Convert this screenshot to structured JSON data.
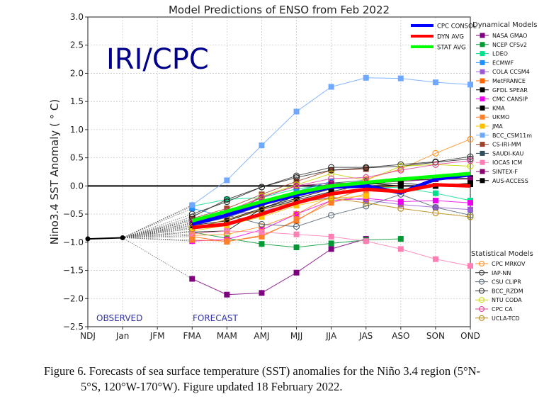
{
  "chart_data": {
    "type": "line",
    "title": "Model Predictions of ENSO from Feb 2022",
    "watermark": "IRI/CPC",
    "xlabel": "",
    "ylabel": "Nino3.4 SST Anomaly ( ° C)",
    "ylim": [
      -2.5,
      3.0
    ],
    "yticks": [
      "3.0",
      "2.5",
      "2.0",
      "1.5",
      "1.0",
      "0.5",
      "0.0",
      "−0.5",
      "−1.0",
      "−1.5",
      "−2.0",
      "−2.5"
    ],
    "ytick_values": [
      3.0,
      2.5,
      2.0,
      1.5,
      1.0,
      0.5,
      0.0,
      -0.5,
      -1.0,
      -1.5,
      -2.0,
      -2.5
    ],
    "categories": [
      "NDJ",
      "Jan",
      "JFM",
      "FMA",
      "MAM",
      "AMJ",
      "MJJ",
      "JJA",
      "JAS",
      "ASO",
      "SON",
      "OND"
    ],
    "grid": true,
    "annotations": {
      "observed": "OBSERVED",
      "forecast": "FORECAST"
    },
    "observed": {
      "x": [
        0,
        1
      ],
      "values": [
        -0.94,
        -0.92
      ]
    },
    "summary_series": [
      {
        "name": "CPC CONSOL",
        "color": "#0000ff",
        "values": [
          -0.68,
          -0.52,
          -0.32,
          -0.16,
          -0.02,
          0.0,
          -0.12,
          0.12,
          0.2
        ]
      },
      {
        "name": "DYN AVG",
        "color": "#ff0000",
        "values": [
          -0.74,
          -0.68,
          -0.5,
          -0.3,
          -0.14,
          -0.06,
          -0.1,
          0.02,
          0.0
        ]
      },
      {
        "name": "STAT AVG",
        "color": "#00ff00",
        "values": [
          -0.62,
          -0.45,
          -0.28,
          -0.12,
          0.0,
          0.06,
          0.12,
          0.17,
          0.22
        ]
      }
    ],
    "legend_dynamical_title": "Dynamical Models",
    "dynamical_models": [
      {
        "name": "NASA GMAO",
        "color": "#7f007f",
        "values": [
          -1.65,
          -1.93,
          -1.9,
          -1.54,
          -1.12,
          -0.94,
          null,
          null,
          null
        ]
      },
      {
        "name": "NCEP CFSv2",
        "color": "#009933",
        "values": [
          -0.82,
          -0.93,
          -1.03,
          -1.09,
          -1.02,
          -0.96,
          -0.94,
          null,
          null
        ]
      },
      {
        "name": "LDEO",
        "color": "#00e08c",
        "values": [
          -0.36,
          -0.24,
          -0.21,
          -0.05,
          0.02,
          -0.02,
          -0.03,
          -0.13,
          -0.26
        ]
      },
      {
        "name": "ECMWF",
        "color": "#1e90ff",
        "values": [
          -0.4,
          -0.55,
          -0.3,
          -0.1,
          0.08,
          null,
          null,
          null,
          null
        ]
      },
      {
        "name": "COLA CCSM4",
        "color": "#9b59d6",
        "values": [
          -0.6,
          -0.5,
          -0.45,
          -0.3,
          -0.2,
          -0.25,
          -0.33,
          -0.38,
          -0.42
        ]
      },
      {
        "name": "MetFRANCE",
        "color": "#ff6600",
        "values": [
          -0.9,
          -0.99,
          -0.88,
          -0.62,
          -0.25,
          -0.04,
          0.0,
          null,
          null
        ]
      },
      {
        "name": "GFDL SPEAR",
        "color": "#000000",
        "values": [
          -0.82,
          -0.8,
          -0.4,
          -0.22,
          -0.05,
          0.02,
          0.1,
          0.12,
          0.14
        ]
      },
      {
        "name": "CMC CANSIP",
        "color": "#ee00ee",
        "values": [
          -0.98,
          -0.95,
          -0.78,
          -0.5,
          -0.26,
          -0.22,
          -0.28,
          -0.26,
          -0.3
        ]
      },
      {
        "name": "KMA",
        "color": "#000000",
        "values": [
          -0.76,
          -0.6,
          -0.4,
          -0.18,
          -0.02,
          0.05,
          0.0,
          0.0,
          0.03
        ]
      },
      {
        "name": "UKMO",
        "color": "#ff7f2a",
        "values": [
          -0.96,
          -0.98,
          -0.9,
          -0.6,
          -0.3,
          -0.14,
          null,
          null,
          null
        ]
      },
      {
        "name": "JMA",
        "color": "#ffc000",
        "values": [
          -0.8,
          -0.7,
          -0.55,
          -0.35,
          -0.22,
          -0.18,
          null,
          null,
          null
        ]
      },
      {
        "name": "BCC_CSM11m",
        "color": "#6fa8ff",
        "values": [
          -0.34,
          0.1,
          0.72,
          1.32,
          1.76,
          1.92,
          1.91,
          1.84,
          1.8
        ]
      },
      {
        "name": "CS-IRI-MM",
        "color": "#a0422a",
        "values": [
          -0.58,
          -0.4,
          -0.15,
          0.08,
          0.28,
          0.3,
          null,
          null,
          null
        ]
      },
      {
        "name": "SAUDI-KAU",
        "color": "#2f4f5f",
        "values": [
          -0.7,
          -0.56,
          -0.35,
          -0.15,
          0.05,
          0.1,
          null,
          null,
          null
        ]
      },
      {
        "name": "IOCAS ICM",
        "color": "#ff7fb5",
        "values": [
          -0.85,
          -0.8,
          -0.82,
          -0.86,
          -0.9,
          -0.98,
          -1.12,
          -1.3,
          -1.42
        ]
      },
      {
        "name": "SINTEX-F",
        "color": "#8b0070",
        "values": [
          -0.66,
          -0.52,
          -0.2,
          0.0,
          0.05,
          0.05,
          0.08,
          0.12,
          0.12
        ]
      },
      {
        "name": "AUS-ACCESS",
        "color": "#000000",
        "values": [
          -0.7,
          -0.62,
          -0.42,
          -0.25,
          -0.1,
          0.03,
          0.05,
          0.0,
          0.05
        ]
      }
    ],
    "legend_statistical_title": "Statistical Models",
    "statistical_models": [
      {
        "name": "CPC MRKOV",
        "color": "#ff8c1a",
        "values": [
          -0.88,
          -0.86,
          -0.72,
          -0.5,
          -0.18,
          0.12,
          0.3,
          0.58,
          0.83
        ]
      },
      {
        "name": "IAP-NN",
        "color": "#333333",
        "values": [
          -0.5,
          -0.28,
          -0.02,
          0.18,
          0.33,
          0.33,
          0.38,
          0.43,
          0.52
        ]
      },
      {
        "name": "CSU CLIPR",
        "color": "#506070",
        "values": [
          -0.62,
          -0.52,
          -0.68,
          -0.72,
          -0.52,
          -0.36,
          -0.15,
          -0.38,
          -0.52
        ]
      },
      {
        "name": "BCC_RZDM",
        "color": "#222222",
        "values": [
          -0.55,
          -0.24,
          -0.02,
          0.15,
          0.28,
          0.32,
          0.35,
          0.42,
          0.48
        ]
      },
      {
        "name": "NTU CODA",
        "color": "#c8d400",
        "values": [
          -0.72,
          -0.5,
          -0.18,
          0.02,
          0.22,
          0.1,
          0.35,
          0.38,
          0.35
        ]
      },
      {
        "name": "CPC CA",
        "color": "#e0409a",
        "values": [
          -0.65,
          -0.45,
          -0.2,
          0.0,
          0.13,
          0.15,
          0.28,
          0.38,
          0.45
        ]
      },
      {
        "name": "UCLA-TCD",
        "color": "#b8860b",
        "values": [
          -0.76,
          -0.6,
          -0.42,
          -0.28,
          -0.22,
          -0.3,
          -0.4,
          -0.48,
          -0.55
        ]
      }
    ]
  },
  "caption": {
    "line1": "Figure  6. Forecasts of sea surface temperature (SST) anomalies  for the Niño 3.4 region (5°N-",
    "line2": "5°S, 120°W-170°W).  Figure updated 18 February 2022."
  }
}
